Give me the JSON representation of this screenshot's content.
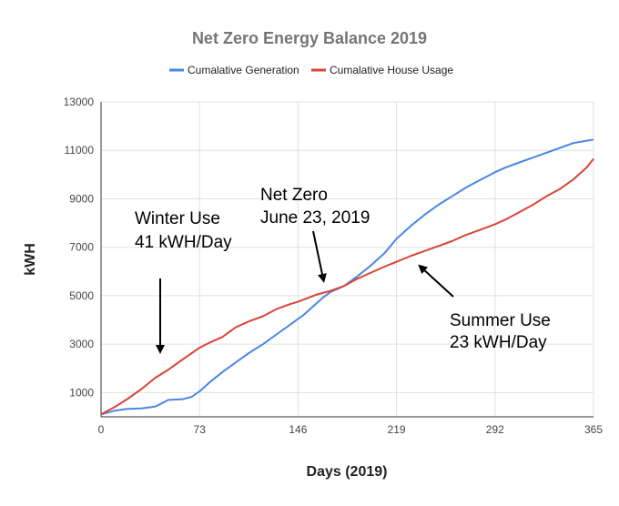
{
  "chart_data": {
    "type": "line",
    "title": "Net Zero Energy Balance 2019",
    "xlabel": "Days (2019)",
    "ylabel": "kWH",
    "xlim": [
      0,
      365
    ],
    "ylim": [
      0,
      13000
    ],
    "x_ticks": [
      "0",
      "73",
      "146",
      "219",
      "292",
      "365"
    ],
    "y_ticks": [
      "1000",
      "3000",
      "5000",
      "7000",
      "9000",
      "11000",
      "13000"
    ],
    "grid": true,
    "legend_position": "top",
    "series": [
      {
        "name": "Cumalative Generation",
        "color": "#4a86e8",
        "points": [
          [
            0,
            100
          ],
          [
            10,
            250
          ],
          [
            20,
            330
          ],
          [
            30,
            350
          ],
          [
            40,
            420
          ],
          [
            45,
            560
          ],
          [
            50,
            700
          ],
          [
            60,
            720
          ],
          [
            67,
            820
          ],
          [
            73,
            1050
          ],
          [
            80,
            1400
          ],
          [
            90,
            1850
          ],
          [
            100,
            2250
          ],
          [
            110,
            2650
          ],
          [
            120,
            3000
          ],
          [
            130,
            3400
          ],
          [
            140,
            3800
          ],
          [
            150,
            4200
          ],
          [
            160,
            4700
          ],
          [
            165,
            4950
          ],
          [
            170,
            5150
          ],
          [
            180,
            5400
          ],
          [
            190,
            5800
          ],
          [
            200,
            6250
          ],
          [
            210,
            6750
          ],
          [
            219,
            7350
          ],
          [
            230,
            7900
          ],
          [
            240,
            8350
          ],
          [
            250,
            8750
          ],
          [
            260,
            9100
          ],
          [
            270,
            9450
          ],
          [
            280,
            9750
          ],
          [
            292,
            10100
          ],
          [
            300,
            10300
          ],
          [
            310,
            10500
          ],
          [
            320,
            10700
          ],
          [
            330,
            10900
          ],
          [
            340,
            11100
          ],
          [
            350,
            11300
          ],
          [
            360,
            11400
          ],
          [
            365,
            11450
          ]
        ]
      },
      {
        "name": "Cumalative House Usage",
        "color": "#db4437",
        "points": [
          [
            0,
            100
          ],
          [
            10,
            400
          ],
          [
            20,
            750
          ],
          [
            30,
            1150
          ],
          [
            40,
            1600
          ],
          [
            50,
            1950
          ],
          [
            60,
            2350
          ],
          [
            73,
            2850
          ],
          [
            80,
            3050
          ],
          [
            90,
            3300
          ],
          [
            100,
            3700
          ],
          [
            110,
            3950
          ],
          [
            120,
            4150
          ],
          [
            130,
            4450
          ],
          [
            140,
            4650
          ],
          [
            146,
            4750
          ],
          [
            160,
            5050
          ],
          [
            170,
            5200
          ],
          [
            180,
            5400
          ],
          [
            190,
            5700
          ],
          [
            200,
            5950
          ],
          [
            210,
            6200
          ],
          [
            219,
            6400
          ],
          [
            230,
            6650
          ],
          [
            240,
            6850
          ],
          [
            250,
            7050
          ],
          [
            260,
            7250
          ],
          [
            270,
            7500
          ],
          [
            280,
            7700
          ],
          [
            292,
            7950
          ],
          [
            300,
            8150
          ],
          [
            310,
            8450
          ],
          [
            320,
            8750
          ],
          [
            330,
            9100
          ],
          [
            340,
            9400
          ],
          [
            350,
            9800
          ],
          [
            360,
            10300
          ],
          [
            365,
            10650
          ]
        ]
      }
    ],
    "annotations": [
      {
        "lines": [
          "Winter Use",
          "41 kWH/Day"
        ]
      },
      {
        "lines": [
          "Net Zero",
          "June 23, 2019"
        ]
      },
      {
        "lines": [
          "Summer Use",
          "23 kWH/Day"
        ]
      }
    ]
  }
}
